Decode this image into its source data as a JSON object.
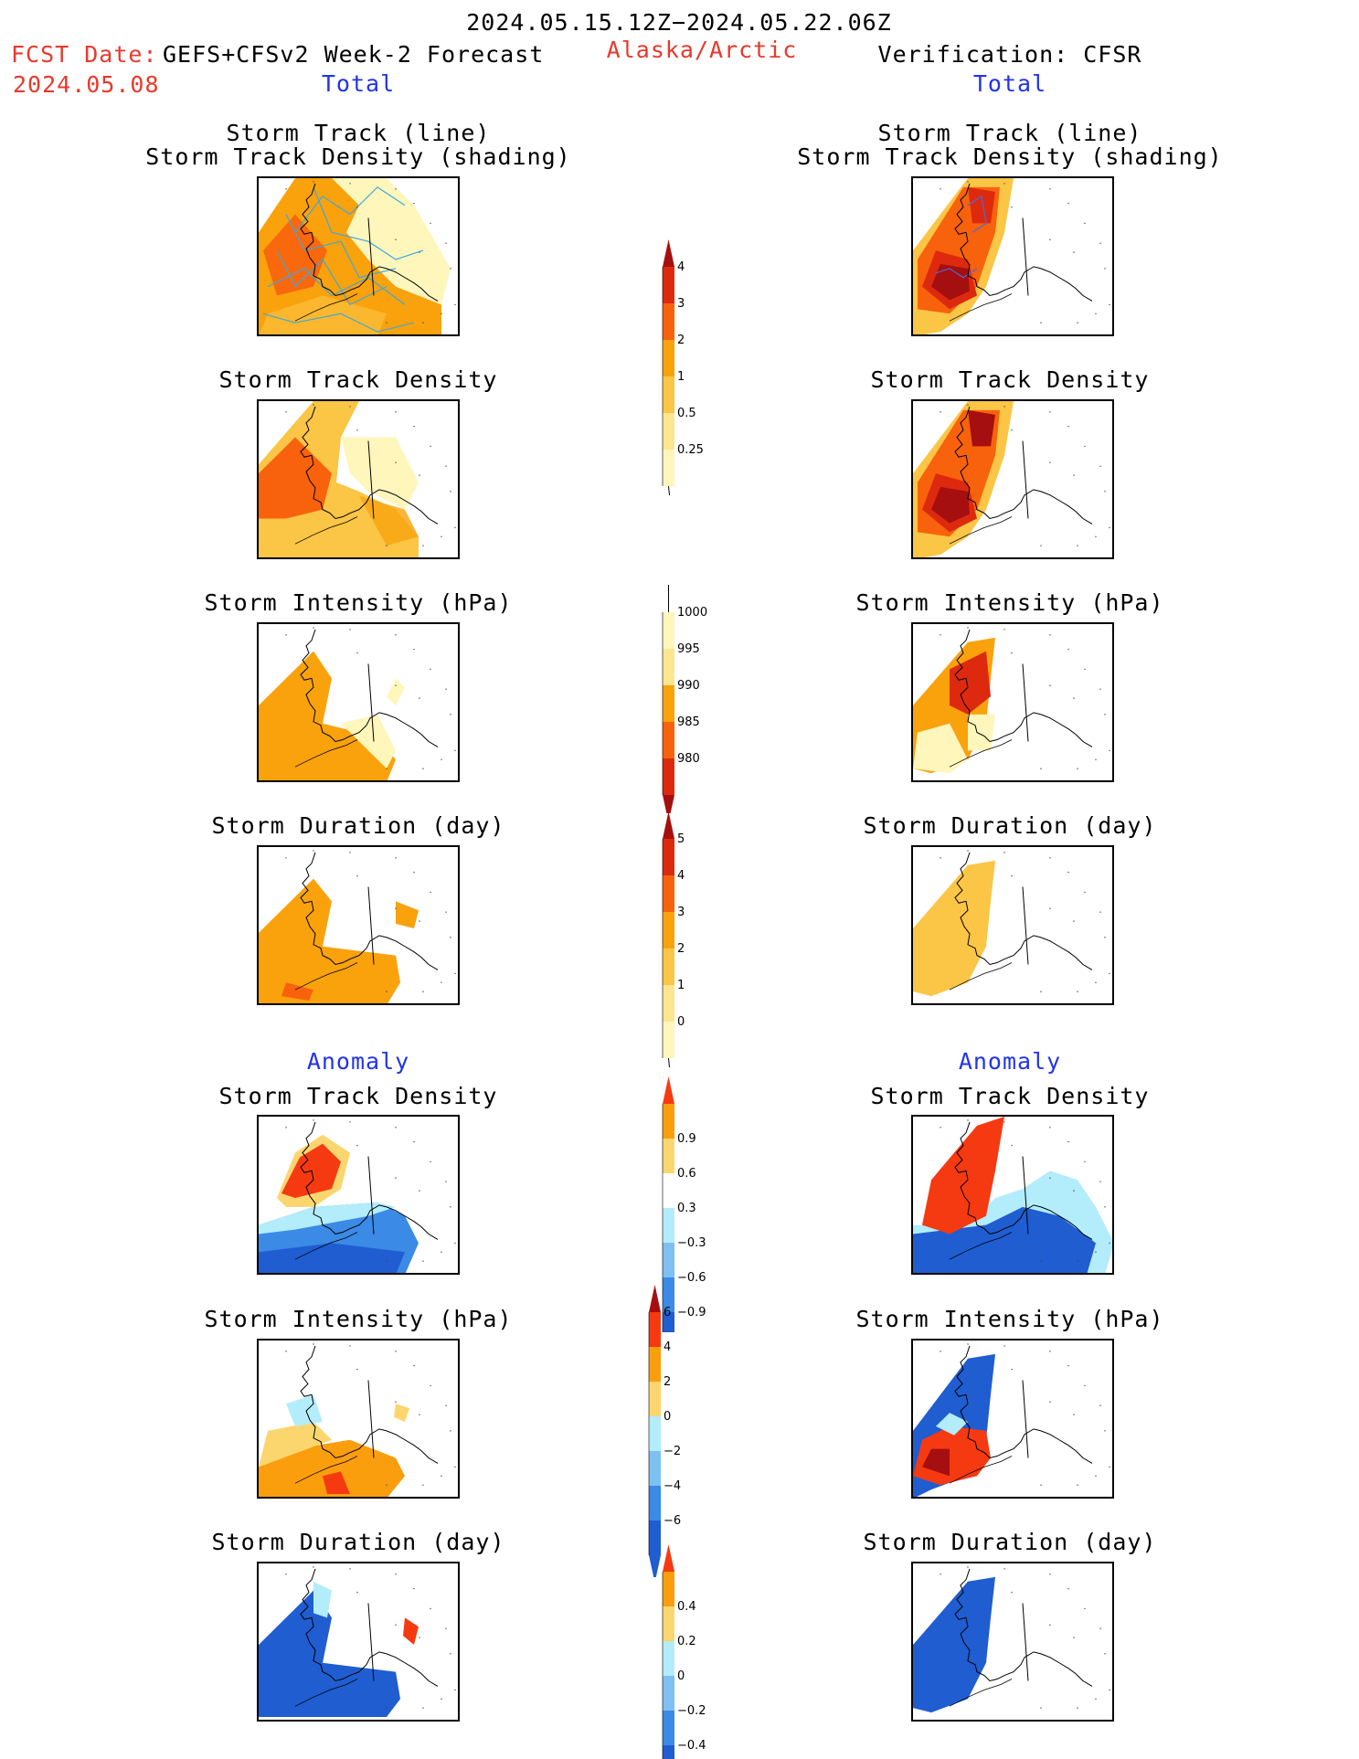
{
  "header": {
    "date_range": "2024.05.15.12Z−2024.05.22.06Z",
    "fcst_label": "FCST Date:",
    "fcst_model": "GEFS+CFSv2 Week-2 Forecast",
    "fcst_date": "2024.05.08",
    "region": "Alaska/Arctic",
    "verification": "Verification: CFSR"
  },
  "sections": {
    "total_label": "Total",
    "anomaly_label": "Anomaly"
  },
  "panel_titles": {
    "storm_track_line": "Storm Track (line)",
    "storm_track_density_shading": "Storm Track Density (shading)",
    "storm_track_density": "Storm Track Density",
    "storm_intensity": "Storm Intensity (hPa)",
    "storm_duration": "Storm Duration (day)"
  },
  "colorbars": [
    {
      "name": "track-density-total",
      "labels": [
        "4",
        "3",
        "2",
        "1",
        "0.5",
        "0.25"
      ],
      "colors": [
        "#a50f0f",
        "#dd2a0e",
        "#f8620c",
        "#f9a20c",
        "#fbc545",
        "#fde68f",
        "#fff6bc"
      ]
    },
    {
      "name": "intensity-total",
      "labels": [
        "1000",
        "995",
        "990",
        "985",
        "980"
      ],
      "colors": [
        "#fff6bc",
        "#fde68f",
        "#f9a20c",
        "#f8620c",
        "#dd2a0e",
        "#a50f0f"
      ]
    },
    {
      "name": "duration-total",
      "labels": [
        "5",
        "4",
        "3",
        "2",
        "1",
        "0"
      ],
      "colors": [
        "#a50f0f",
        "#dd2a0e",
        "#f8620c",
        "#f9a20c",
        "#fbc545",
        "#fde68f",
        "#fff6bc"
      ]
    },
    {
      "name": "track-density-anomaly",
      "labels": [
        "0.9",
        "0.6",
        "0.3",
        "−0.3",
        "−0.6",
        "−0.9"
      ],
      "colors": [
        "#f53a12",
        "#fb9e0e",
        "#fbd66f",
        "#ffffff",
        "#b3ecfa",
        "#7ec0f2",
        "#3a8ae6",
        "#1f5dd1"
      ]
    },
    {
      "name": "intensity-anomaly",
      "labels": [
        "6",
        "4",
        "2",
        "0",
        "−2",
        "−4",
        "−6"
      ],
      "colors": [
        "#a50f0f",
        "#f53a12",
        "#fb9e0e",
        "#fbd66f",
        "#b3ecfa",
        "#7ec0f2",
        "#3a8ae6",
        "#1f5dd1"
      ]
    },
    {
      "name": "duration-anomaly",
      "labels": [
        "0.4",
        "0.2",
        "0",
        "−0.2",
        "−0.4"
      ],
      "colors": [
        "#f53a12",
        "#fb9e0e",
        "#fbd66f",
        "#b3ecfa",
        "#7ec0f2",
        "#3a8ae6",
        "#1f5dd1"
      ]
    }
  ],
  "colors": {
    "deep_red": "#a50f0f",
    "red": "#dd2a0e",
    "orange_red": "#f8620c",
    "orange": "#f9a20c",
    "light_orange": "#fbc545",
    "pale_yellow": "#fff6bc",
    "dark_blue": "#1f5dd1",
    "light_blue": "#b3ecfa",
    "track_line": "#3da8e0"
  }
}
